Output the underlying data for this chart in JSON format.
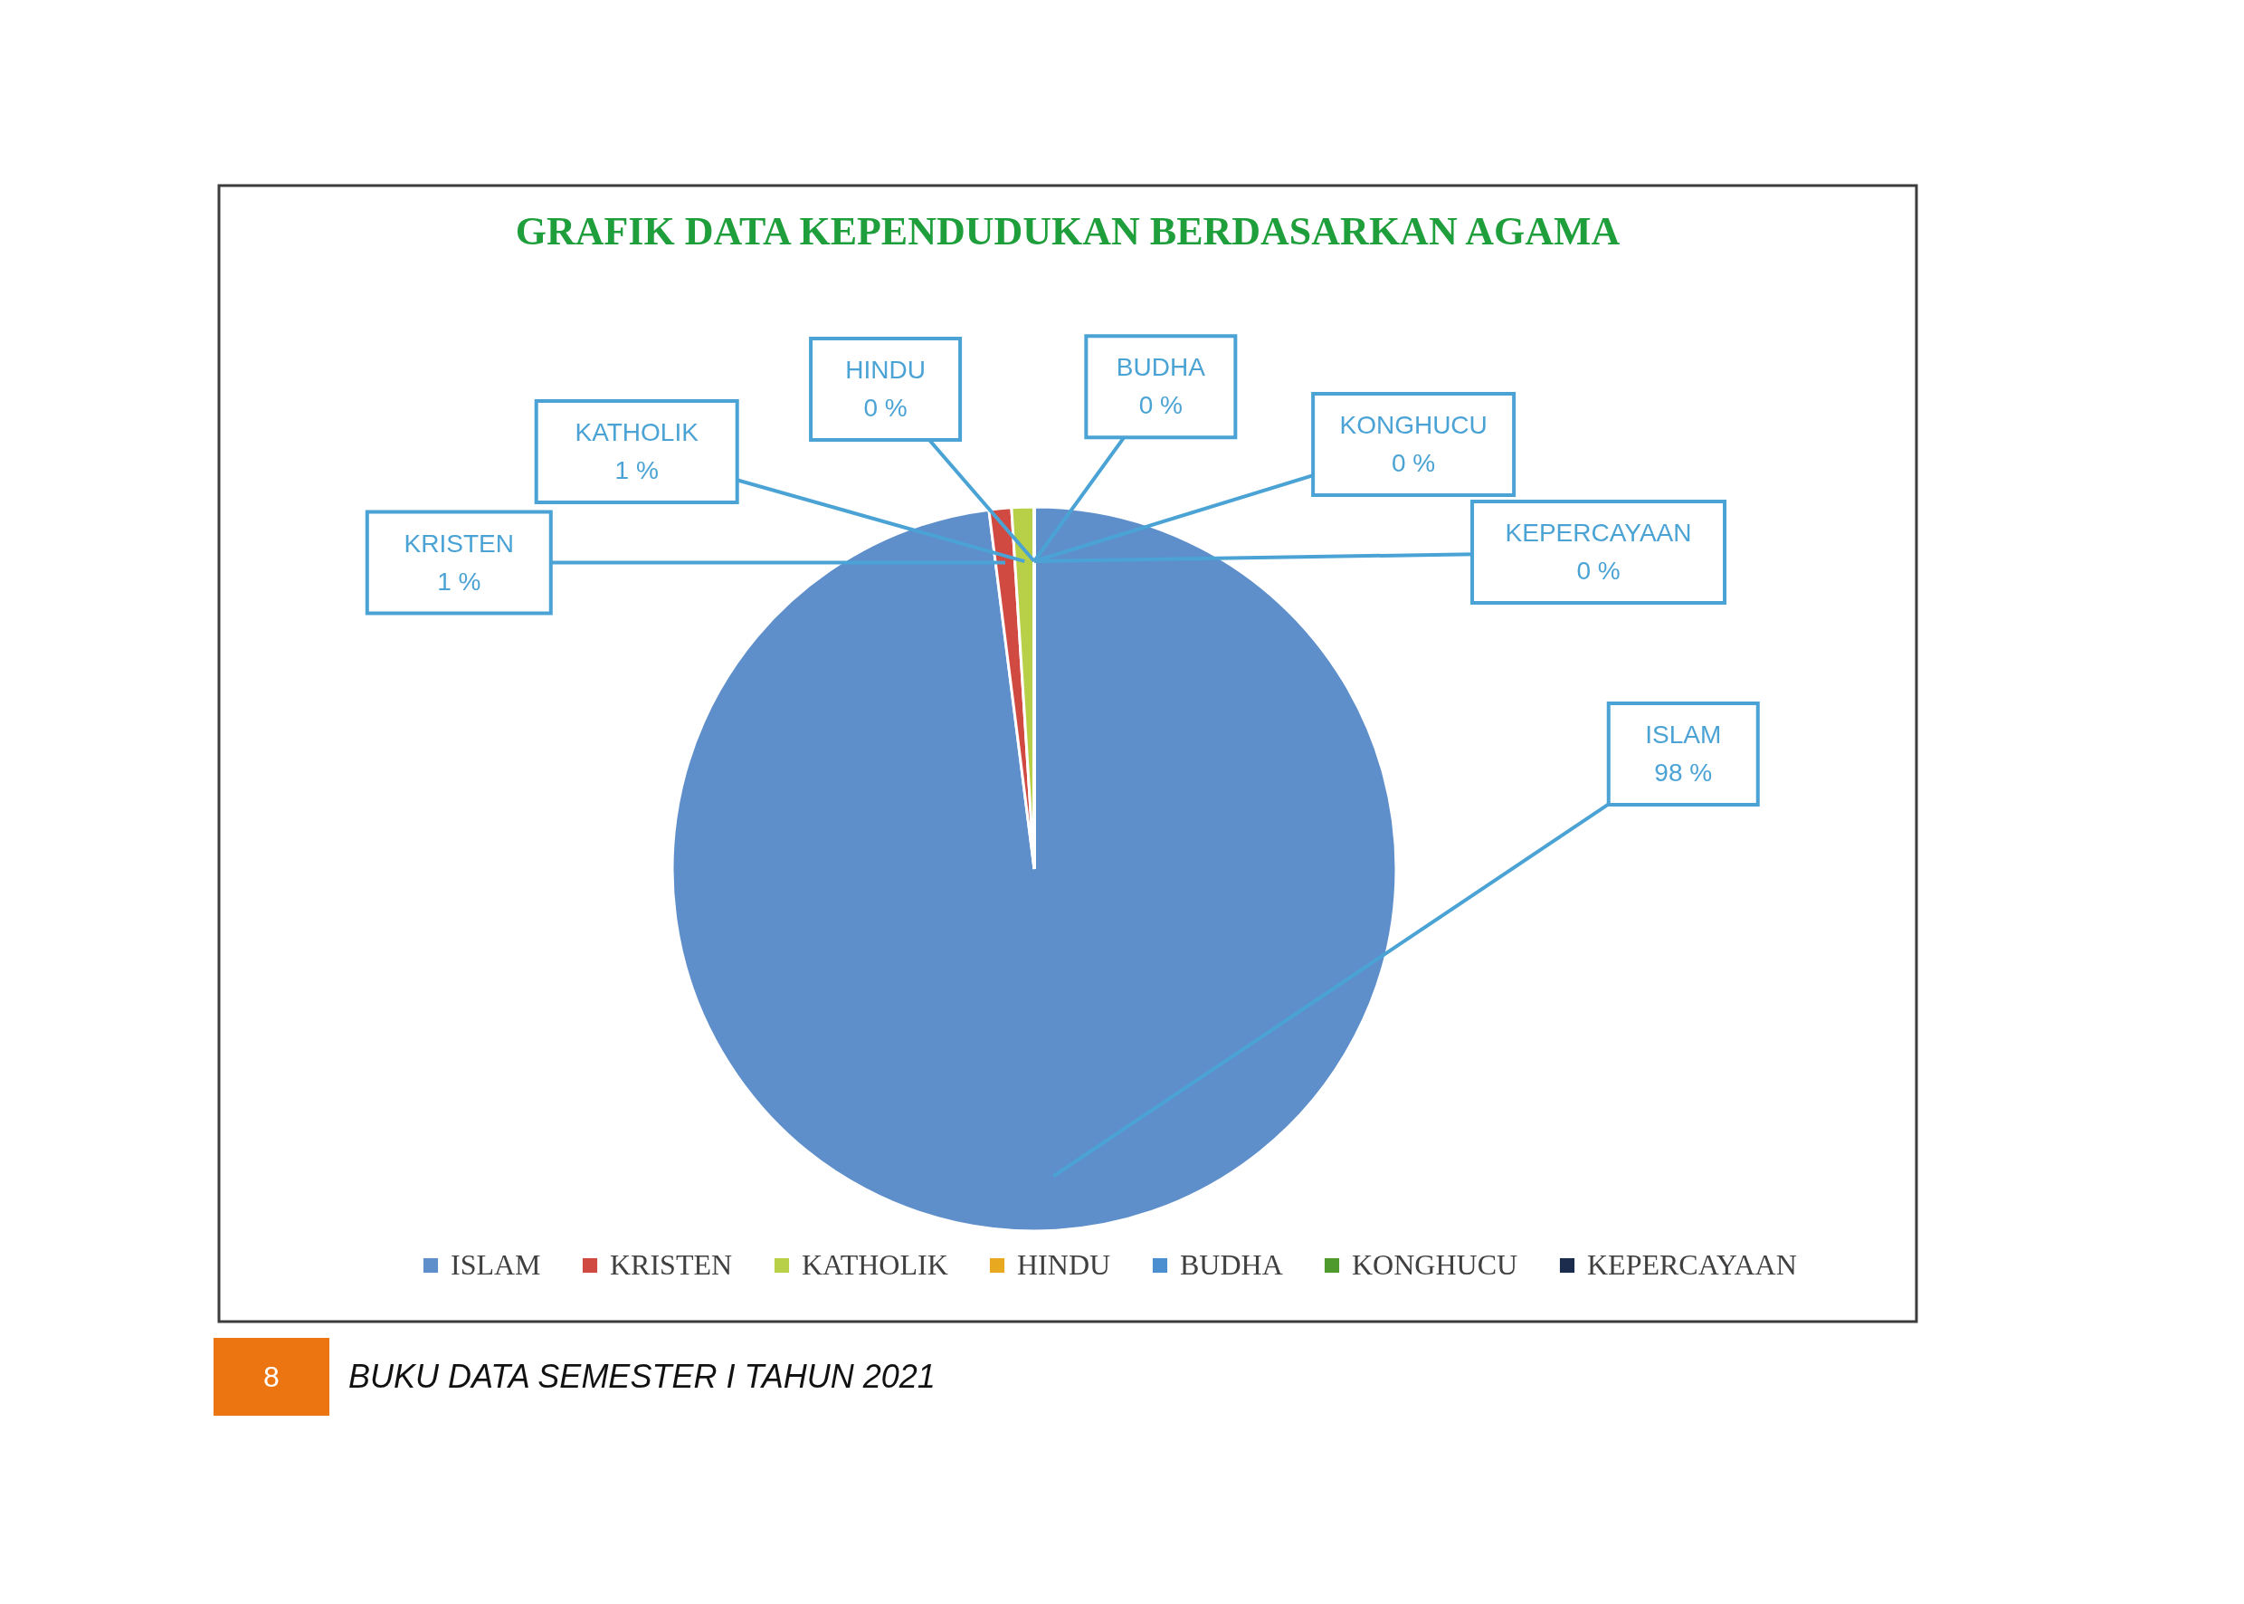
{
  "chart_data": {
    "type": "pie",
    "title": "GRAFIK DATA KEPENDUDUKAN BERDASARKAN AGAMA",
    "categories": [
      "ISLAM",
      "KRISTEN",
      "KATHOLIK",
      "HINDU",
      "BUDHA",
      "KONGHUCU",
      "KEPERCAYAAN"
    ],
    "values": [
      98,
      1,
      1,
      0,
      0,
      0,
      0
    ],
    "value_labels": [
      "98 %",
      "1 %",
      "1 %",
      "0 %",
      "0 %",
      "0 %",
      "0 %"
    ],
    "colors": [
      "#5f8fcb",
      "#d04a42",
      "#b8cf48",
      "#e8a820",
      "#4b8fd0",
      "#4f9a2c",
      "#1c2c4c"
    ],
    "legend": "bottom",
    "annotations": [
      "8",
      "BUKU DATA SEMESTER I TAHUN 2021"
    ]
  }
}
